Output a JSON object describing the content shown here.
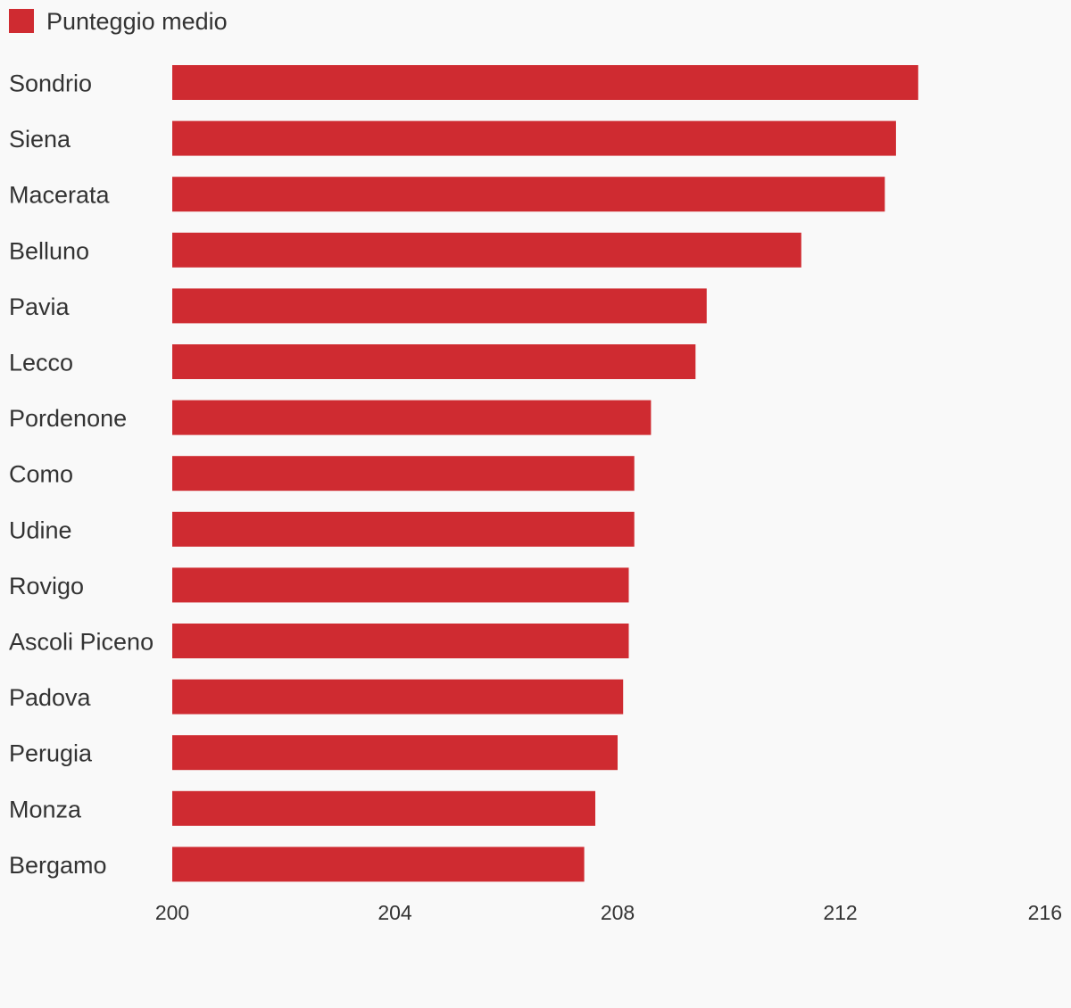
{
  "chart_data": {
    "type": "bar",
    "orientation": "horizontal",
    "categories": [
      "Sondrio",
      "Siena",
      "Macerata",
      "Belluno",
      "Pavia",
      "Lecco",
      "Pordenone",
      "Como",
      "Udine",
      "Rovigo",
      "Ascoli Piceno",
      "Padova",
      "Perugia",
      "Monza",
      "Bergamo"
    ],
    "series": [
      {
        "name": "Punteggio medio",
        "color": "#cf2b31",
        "values": [
          213.4,
          213.0,
          212.8,
          211.3,
          209.6,
          209.4,
          208.6,
          208.3,
          208.3,
          208.2,
          208.2,
          208.1,
          208.0,
          207.6,
          207.4
        ]
      }
    ],
    "xlim": [
      200,
      216
    ],
    "xticks": [
      "200",
      "204",
      "208",
      "212",
      "216"
    ],
    "legend": "top-left",
    "grid": false,
    "title": "",
    "xlabel": "",
    "ylabel": ""
  }
}
